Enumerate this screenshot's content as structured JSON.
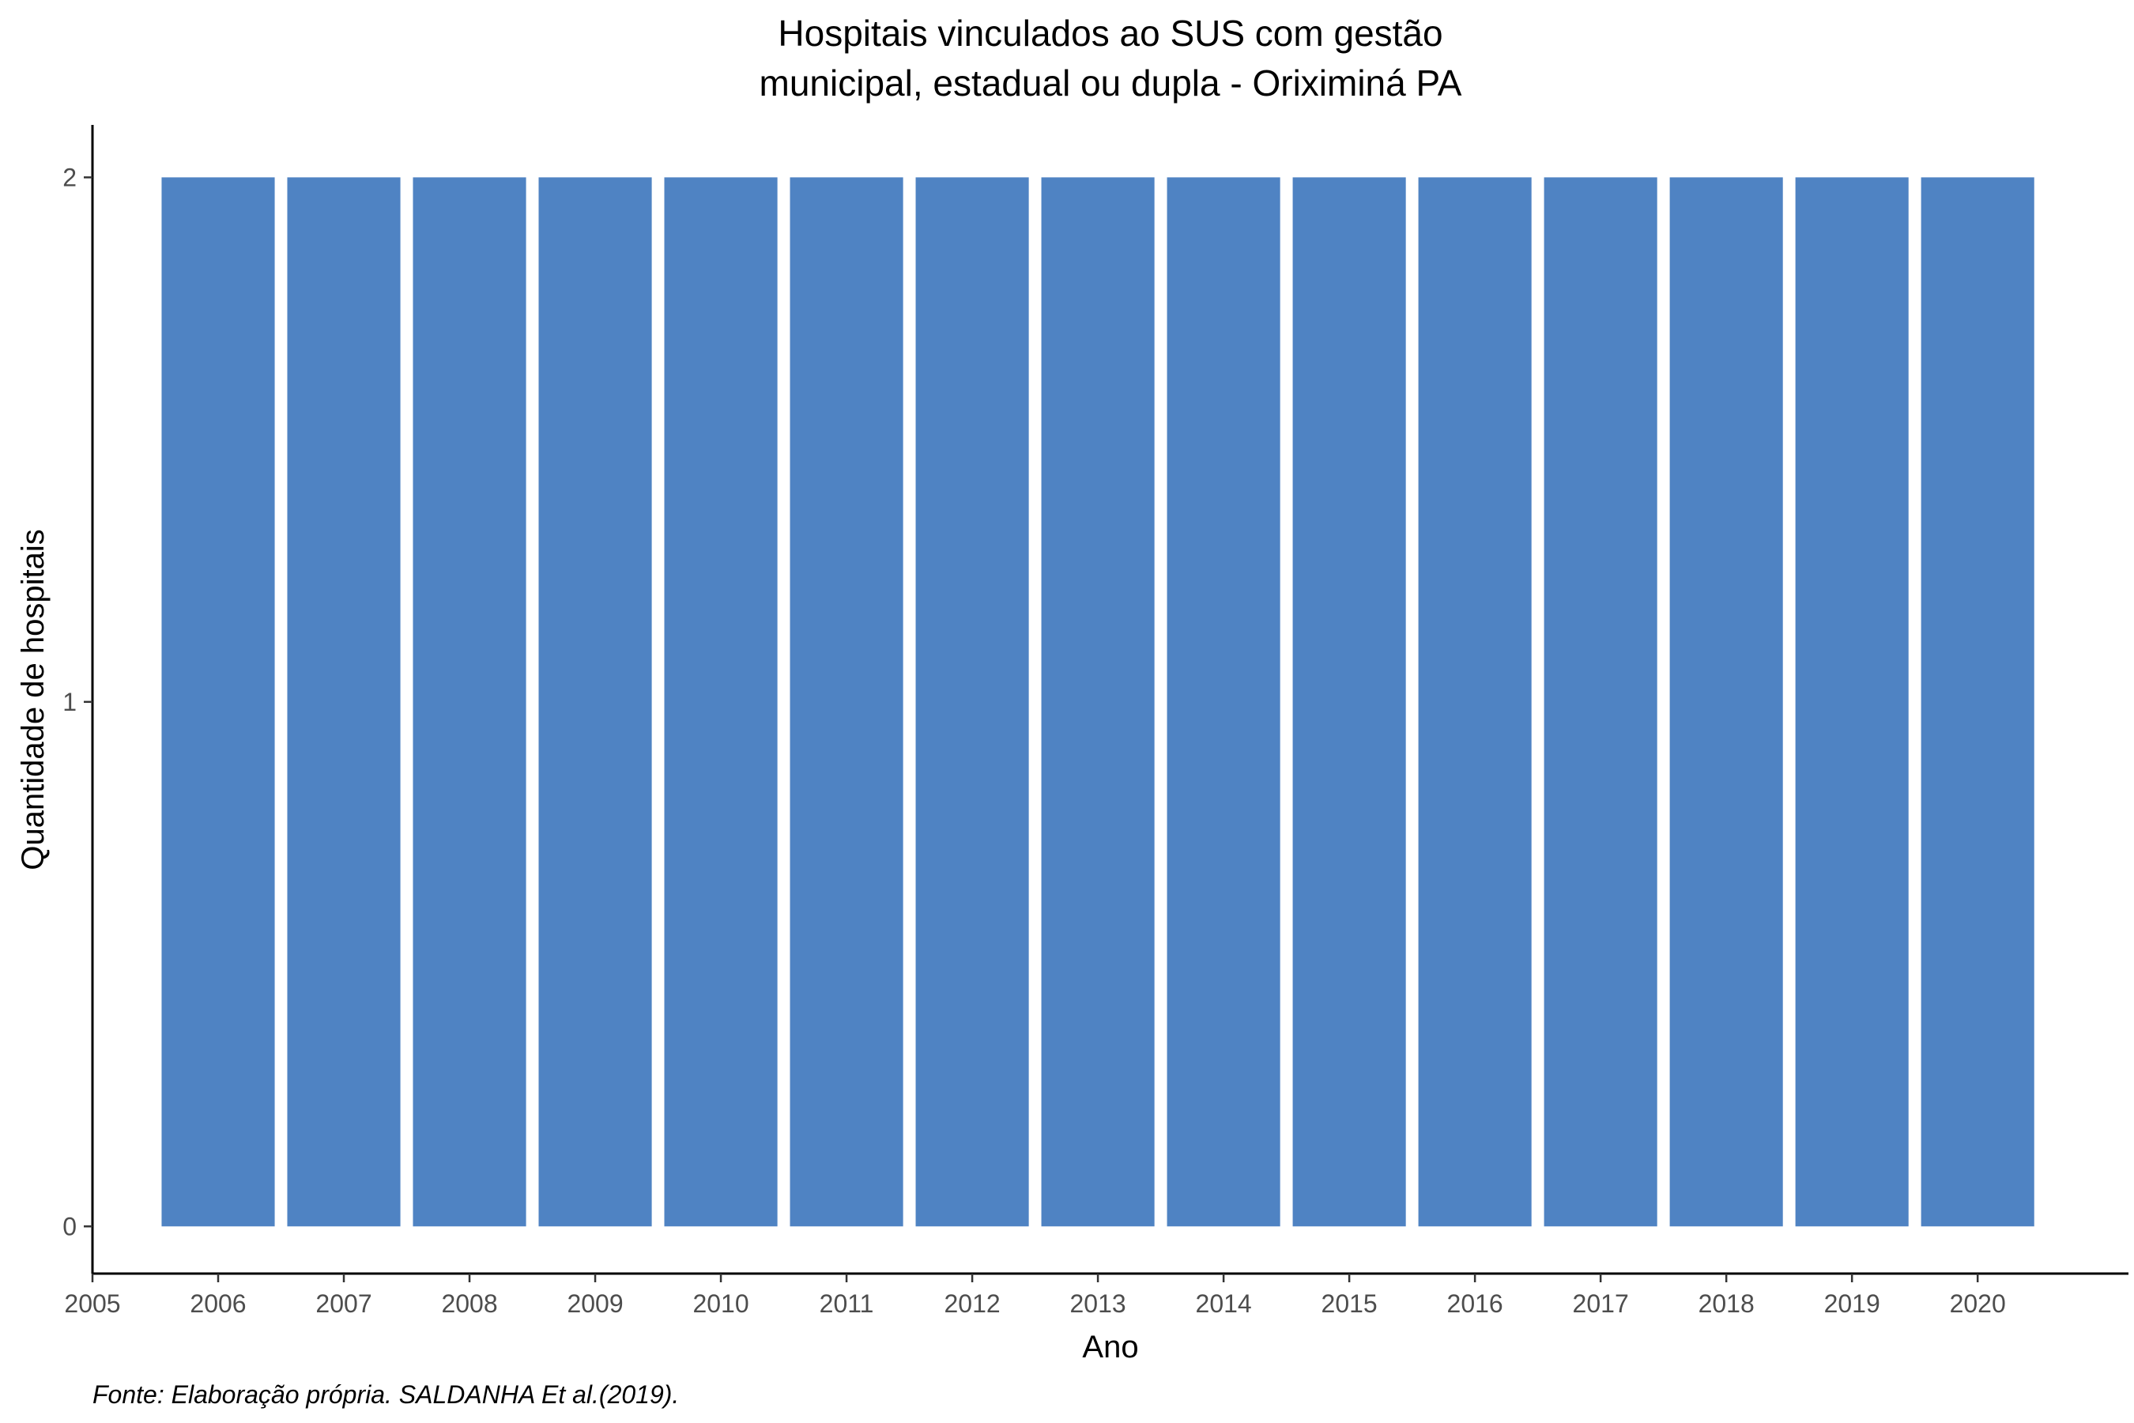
{
  "chart_data": {
    "type": "bar",
    "title_lines": [
      "Hospitais vinculados ao SUS com gestão",
      "municipal, estadual ou dupla -  Oriximiná PA"
    ],
    "xlabel": "Ano",
    "ylabel": "Quantidade de hospitais",
    "caption": "Fonte: Elaboração própria. SALDANHA Et al.(2019).",
    "categories": [
      2006,
      2007,
      2008,
      2009,
      2010,
      2011,
      2012,
      2013,
      2014,
      2015,
      2016,
      2017,
      2018,
      2019,
      2020
    ],
    "values": [
      2,
      2,
      2,
      2,
      2,
      2,
      2,
      2,
      2,
      2,
      2,
      2,
      2,
      2,
      2
    ],
    "x_ticks": [
      "2005",
      "2006",
      "2007",
      "2008",
      "2009",
      "2010",
      "2011",
      "2012",
      "2013",
      "2014",
      "2015",
      "2016",
      "2017",
      "2018",
      "2019",
      "2020"
    ],
    "y_ticks": [
      "0",
      "1",
      "2"
    ],
    "xlim": [
      2005,
      2021.2
    ],
    "ylim": [
      -0.09,
      2.1
    ],
    "bar_color": "#4f83c3",
    "grid": false,
    "legend": "none"
  }
}
